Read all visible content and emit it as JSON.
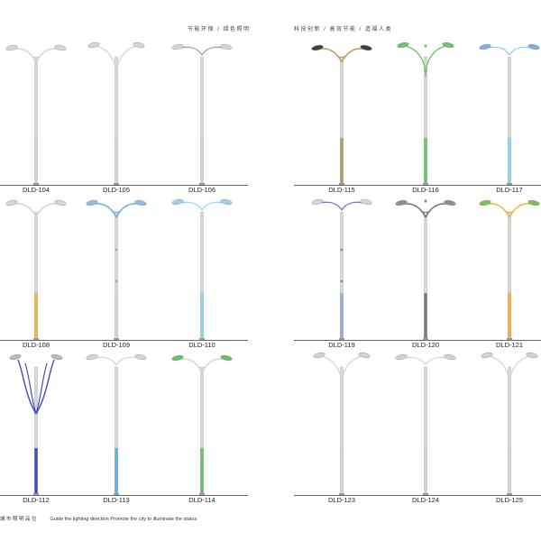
{
  "header": {
    "left_slogan": "节能环保 / 绿色照明",
    "right_slogan": "科技创新 / 高效节能 / 造福人类"
  },
  "footer": {
    "cn_text": "城市照明品位",
    "en_text": "Guide the lighting direction Promote the city to illuminate the status"
  },
  "colors": {
    "pole": "#d7d9d9",
    "pole_edge": "#b2b4b4",
    "lamp": "#cfd3d4",
    "baseline": "#666666"
  },
  "left_catalog": [
    {
      "model": "DLD-104",
      "lamp_color": "#d4d6d7",
      "accent_color": "#d4d6d7",
      "base_color": "#d4d6d7",
      "arm_style": "curl",
      "decor": "none"
    },
    {
      "model": "DLD-105",
      "lamp_color": "#d4d6d7",
      "accent_color": "#d4d6d7",
      "base_color": "#d4d6d7",
      "arm_style": "swan",
      "decor": "none"
    },
    {
      "model": "DLD-106",
      "lamp_color": "#d4d6d7",
      "accent_color": "#8fa8a0",
      "base_color": "#d4d6d7",
      "arm_style": "low",
      "decor": "none"
    },
    {
      "model": "DLD-108",
      "lamp_color": "#d4d6d7",
      "accent_color": "#d4d6d7",
      "base_color": "#e3b84a",
      "arm_style": "curl",
      "decor": "none"
    },
    {
      "model": "DLD-109",
      "lamp_color": "#8dbfe6",
      "accent_color": "#6aaee3",
      "base_color": "#d4d6d7",
      "arm_style": "curl",
      "decor": "dots"
    },
    {
      "model": "DLD-110",
      "lamp_color": "#9ad6ea",
      "accent_color": "#8fd6ec",
      "base_color": "#8fd6ec",
      "arm_style": "low",
      "decor": "none"
    },
    {
      "model": "DLD-112",
      "lamp_color": "#b7bbbd",
      "accent_color": "#4a49b8",
      "base_color": "#4a49b8",
      "arm_style": "tulip",
      "decor": "none"
    },
    {
      "model": "DLD-113",
      "lamp_color": "#d4d6d7",
      "accent_color": "#d4d6d7",
      "base_color": "#66b4dd",
      "arm_style": "low",
      "decor": "none"
    },
    {
      "model": "DLD-114",
      "lamp_color": "#67c267",
      "accent_color": "#d4d6d7",
      "base_color": "#67c267",
      "arm_style": "curl",
      "decor": "none"
    }
  ],
  "right_catalog": [
    {
      "model": "DLD-115",
      "lamp_color": "#3e3e3e",
      "accent_color": "#bf9a5e",
      "base_color": "#b69b6c",
      "arm_style": "curl",
      "decor": "none"
    },
    {
      "model": "DLD-116",
      "lamp_color": "#72c072",
      "accent_color": "#72c072",
      "base_color": "#72c072",
      "arm_style": "swan",
      "decor": "tip"
    },
    {
      "model": "DLD-117",
      "lamp_color": "#83aee0",
      "accent_color": "#8fd3ec",
      "base_color": "#8fd3ec",
      "arm_style": "low",
      "decor": "none"
    },
    {
      "model": "DLD-119",
      "lamp_color": "#d4d6d7",
      "accent_color": "#6a78c8",
      "base_color": "#9eaad8",
      "arm_style": "low",
      "decor": "dots"
    },
    {
      "model": "DLD-120",
      "lamp_color": "#8c9093",
      "accent_color": "#6f7275",
      "base_color": "#767a7d",
      "arm_style": "curl",
      "decor": "tip"
    },
    {
      "model": "DLD-121",
      "lamp_color": "#7fbf5a",
      "accent_color": "#f0b248",
      "base_color": "#f0b248",
      "arm_style": "curl",
      "decor": "none"
    },
    {
      "model": "DLD-123",
      "lamp_color": "#cfd3d4",
      "accent_color": "#d4d6d7",
      "base_color": "#d4d6d7",
      "arm_style": "swan",
      "decor": "none"
    },
    {
      "model": "DLD-124",
      "lamp_color": "#cfd3d4",
      "accent_color": "#d4d6d7",
      "base_color": "#d4d6d7",
      "arm_style": "low",
      "decor": "none"
    },
    {
      "model": "DLD-125",
      "lamp_color": "#cfd3d4",
      "accent_color": "#d4d6d7",
      "base_color": "#d4d6d7",
      "arm_style": "swan",
      "decor": "none"
    }
  ]
}
